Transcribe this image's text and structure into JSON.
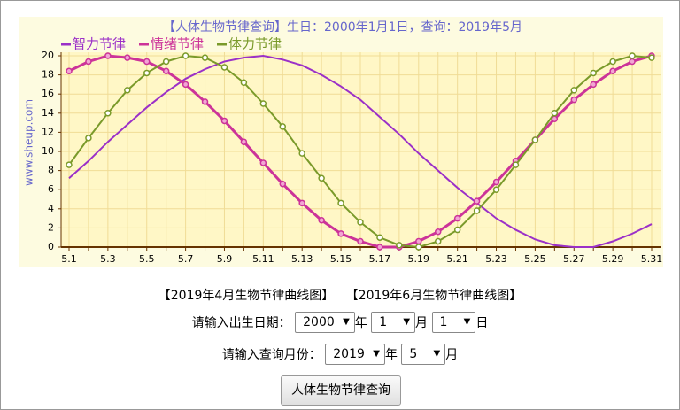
{
  "chart_data": {
    "type": "line",
    "title": "【人体生物节律查询】生日：2000年1月1日，查询：2019年5月",
    "ylabel": "www.sheup.com",
    "categories": [
      "5.1",
      null,
      "5.3",
      null,
      "5.5",
      null,
      "5.7",
      null,
      "5.9",
      null,
      "5.11",
      null,
      "5.13",
      null,
      "5.15",
      null,
      "5.17",
      null,
      "5.19",
      null,
      "5.21",
      null,
      "5.23",
      null,
      "5.25",
      null,
      "5.27",
      null,
      "5.29",
      null,
      "5.31"
    ],
    "series": [
      {
        "name": "智力节律",
        "color": "#9b30c8",
        "marker": "none",
        "values": [
          7.2,
          9.0,
          11.0,
          12.8,
          14.6,
          16.2,
          17.6,
          18.6,
          19.4,
          19.8,
          20.0,
          19.6,
          19.0,
          18.0,
          16.8,
          15.4,
          13.6,
          11.8,
          9.8,
          8.0,
          6.2,
          4.6,
          3.0,
          1.8,
          0.8,
          0.2,
          0.0,
          0.0,
          0.6,
          1.4,
          2.4
        ]
      },
      {
        "name": "情绪节律",
        "color": "#cc3399",
        "marker": "filled",
        "values": [
          18.4,
          19.4,
          20.0,
          19.8,
          19.4,
          18.4,
          17.0,
          15.2,
          13.2,
          11.0,
          8.8,
          6.6,
          4.6,
          2.8,
          1.4,
          0.6,
          0.0,
          0.0,
          0.6,
          1.6,
          3.0,
          4.8,
          6.8,
          9.0,
          11.2,
          13.4,
          15.4,
          17.0,
          18.4,
          19.4,
          20.0
        ]
      },
      {
        "name": "体力节律",
        "color": "#7a9a2a",
        "marker": "hollow",
        "values": [
          8.6,
          11.4,
          14.0,
          16.4,
          18.2,
          19.4,
          20.0,
          19.8,
          18.8,
          17.2,
          15.0,
          12.6,
          9.8,
          7.2,
          4.6,
          2.6,
          1.0,
          0.2,
          0.0,
          0.6,
          1.8,
          3.8,
          6.0,
          8.6,
          11.2,
          14.0,
          16.4,
          18.2,
          19.4,
          20.0,
          19.8
        ]
      }
    ],
    "ylim": [
      0,
      20
    ],
    "yticks": [
      0,
      2,
      4,
      6,
      8,
      10,
      12,
      14,
      16,
      18,
      20
    ],
    "grid": true
  },
  "links": [
    "【2019年4月生物节律曲线图】",
    "【2019年6月生物节律曲线图】"
  ],
  "form": {
    "birth": {
      "label": "请输入出生日期：",
      "year": "2000",
      "year_unit": "年",
      "month": "1",
      "month_unit": "月",
      "day": "1",
      "day_unit": "日"
    },
    "query": {
      "label": "请输入查询月份：",
      "year": "2019",
      "year_unit": "年",
      "month": "5",
      "month_unit": "月"
    },
    "button": "人体生物节律查询"
  }
}
